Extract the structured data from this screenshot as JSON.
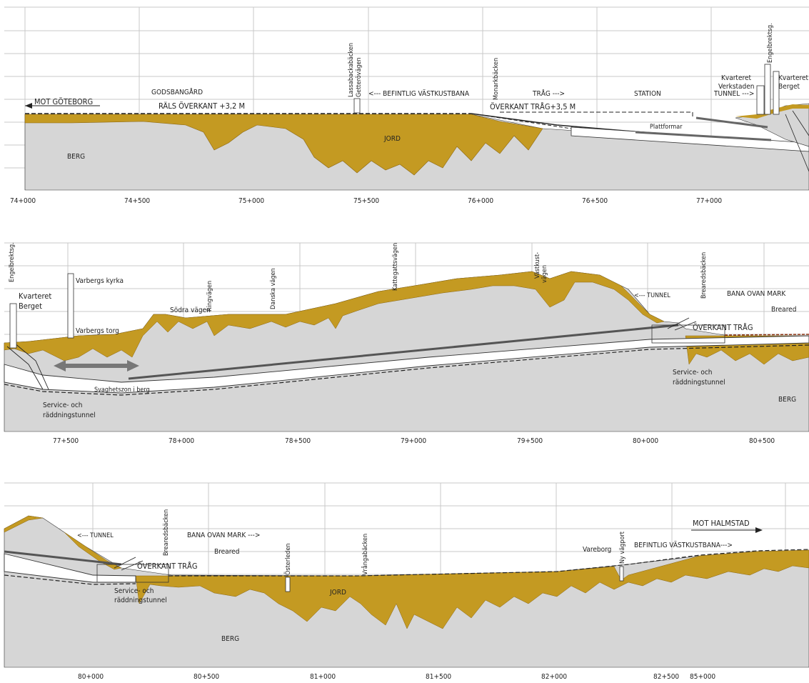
{
  "colors": {
    "berg": "#d6d6d6",
    "jord": "#c49a22",
    "jord_edge": "#8a6612",
    "grid": "#c8c8c8",
    "tunnel": "#ffffff",
    "line": "#222222"
  },
  "panel1": {
    "ticks": [
      "74+000",
      "74+500",
      "75+000",
      "75+500",
      "76+000",
      "76+500",
      "77+000"
    ],
    "labels": {
      "mot_goteborg": "MOT GÖTEBORG",
      "godsbangard": "GODSBANGÅRD",
      "rals_overkant": "RÄLS ÖVERKANT +3,2 M",
      "lassabackabacken": "Lassabackabäcken",
      "getterovagen": "Getterövägen",
      "befintlig": "<--- BEFINTLIG VÄSTKUSTBANA",
      "monarkbacken": "Monarkbäcken",
      "trag": "TRÅG --->",
      "overkant_trag": "ÖVERKANT TRÅG+3,5 M",
      "station": "STATION",
      "tunnel": "TUNNEL --->",
      "kv_verkstaden_1": "Kvarteret",
      "kv_verkstaden_2": "Verkstaden",
      "engelbrektsg": "Engelbrektsg.",
      "kv_berget_1": "Kvarteret",
      "kv_berget_2": "Berget",
      "plattformar": "Plattformar",
      "jord": "JORD",
      "berg": "BERG"
    }
  },
  "panel2": {
    "ticks": [
      "77+500",
      "78+000",
      "78+500",
      "79+000",
      "79+500",
      "80+000",
      "80+500"
    ],
    "labels": {
      "engelbrektsg": "Engelbrektsg.",
      "kv_berget_1": "Kvarteret",
      "kv_berget_2": "Berget",
      "varbergs_kyrka": "Varbergs kyrka",
      "varbergs_torg": "Varbergs torg",
      "sodra_vagen": "Södra vägen",
      "ringvagen": "Ringvägen",
      "danska_vagen": "Danska vägen",
      "kattegattsvagen": "Kattegattsvägen",
      "vastkustvagen_1": "Västkust-",
      "vastkustvagen_2": "vägen",
      "tunnel": "<--- TUNNEL",
      "brearedsbacken": "Brearedsbäcken",
      "bana_ovan_mark": "BANA OVAN MARK",
      "breared": "Breared",
      "overkant_trag": "ÖVERKANT TRÅG",
      "svaghetszon": "Svaghetszon i berg",
      "service_1": "Service- och",
      "service_2": "räddningstunnel",
      "service_right_1": "Service- och",
      "service_right_2": "räddningstunnel",
      "berg": "BERG"
    }
  },
  "panel3": {
    "ticks": [
      "80+000",
      "80+500",
      "81+000",
      "81+500",
      "82+000",
      "82+500",
      "85+000"
    ],
    "labels": {
      "tunnel": "<--- TUNNEL",
      "brearedsbacken": "Brearedsbäcken",
      "bana_ovan_mark": "BANA OVAN MARK --->",
      "breared": "Breared",
      "overkant_trag": "ÖVERKANT TRÅG",
      "osterleden": "Österleden",
      "vrangabacken": "Vrångabäcken",
      "jord": "JORD",
      "berg": "BERG",
      "service_1": "Service- och",
      "service_2": "räddningstunnel",
      "vareborg": "Vareborg",
      "ny_vagport": "Ny vägport",
      "befintlig": "BEFINTLIG VÄSTKUSTBANA--->",
      "mot_halmstad": "MOT HALMSTAD"
    }
  }
}
